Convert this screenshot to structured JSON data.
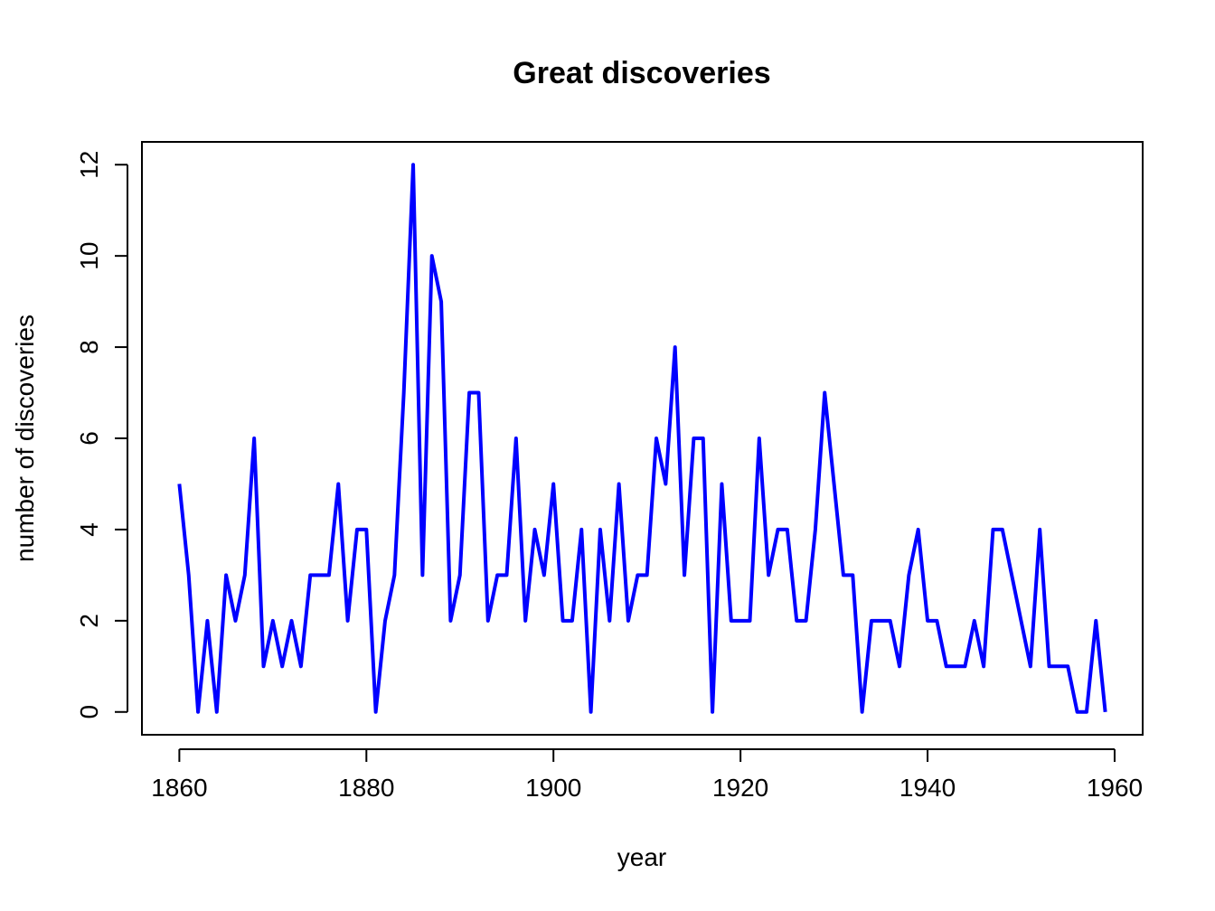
{
  "chart_data": {
    "type": "line",
    "title": "Great discoveries",
    "xlabel": "year",
    "ylabel": "number of discoveries",
    "xlim": [
      1856,
      1963
    ],
    "ylim": [
      -0.5,
      12.5
    ],
    "xticks": [
      1860,
      1880,
      1900,
      1920,
      1940,
      1960
    ],
    "yticks": [
      0,
      2,
      4,
      6,
      8,
      10,
      12
    ],
    "grid": false,
    "series": [
      {
        "color": "#0000ff",
        "x": [
          1860,
          1861,
          1862,
          1863,
          1864,
          1865,
          1866,
          1867,
          1868,
          1869,
          1870,
          1871,
          1872,
          1873,
          1874,
          1875,
          1876,
          1877,
          1878,
          1879,
          1880,
          1881,
          1882,
          1883,
          1884,
          1885,
          1886,
          1887,
          1888,
          1889,
          1890,
          1891,
          1892,
          1893,
          1894,
          1895,
          1896,
          1897,
          1898,
          1899,
          1900,
          1901,
          1902,
          1903,
          1904,
          1905,
          1906,
          1907,
          1908,
          1909,
          1910,
          1911,
          1912,
          1913,
          1914,
          1915,
          1916,
          1917,
          1918,
          1919,
          1920,
          1921,
          1922,
          1923,
          1924,
          1925,
          1926,
          1927,
          1928,
          1929,
          1930,
          1931,
          1932,
          1933,
          1934,
          1935,
          1936,
          1937,
          1938,
          1939,
          1940,
          1941,
          1942,
          1943,
          1944,
          1945,
          1946,
          1947,
          1948,
          1949,
          1950,
          1951,
          1952,
          1953,
          1954,
          1955,
          1956,
          1957,
          1958,
          1959
        ],
        "y": [
          5,
          3,
          0,
          2,
          0,
          3,
          2,
          3,
          6,
          1,
          2,
          1,
          2,
          1,
          3,
          3,
          3,
          5,
          2,
          4,
          4,
          0,
          2,
          3,
          7,
          12,
          3,
          10,
          9,
          2,
          3,
          7,
          7,
          2,
          3,
          3,
          6,
          2,
          4,
          3,
          5,
          2,
          2,
          4,
          0,
          4,
          2,
          5,
          2,
          3,
          3,
          6,
          5,
          8,
          3,
          6,
          6,
          0,
          5,
          2,
          2,
          2,
          6,
          3,
          4,
          4,
          2,
          2,
          4,
          7,
          5,
          3,
          3,
          0,
          2,
          2,
          2,
          1,
          3,
          4,
          2,
          2,
          1,
          1,
          1,
          2,
          1,
          4,
          4,
          3,
          2,
          1,
          4,
          1,
          1,
          1,
          0,
          0,
          2,
          0
        ]
      }
    ]
  }
}
